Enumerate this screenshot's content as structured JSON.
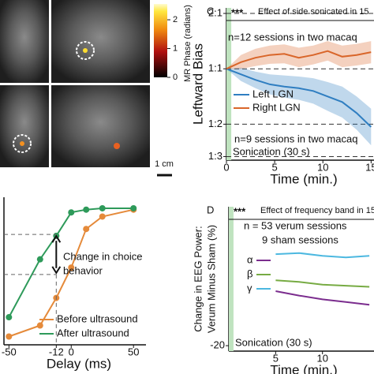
{
  "figure": {
    "colorbar": {
      "label": "MR Phase (radians)",
      "ticks": [
        0,
        1,
        2
      ],
      "lim": [
        0,
        2.55
      ]
    },
    "scale_bar": "1 cm"
  },
  "chart_data": [
    {
      "type": "line",
      "panel": "C",
      "significance": "***",
      "title": "Effect of side sonicated in 15",
      "xlabel": "Time (min.)",
      "ylabel": "Leftward Bias",
      "xlim": [
        0,
        15.3
      ],
      "xticks": [
        0,
        5,
        10,
        15
      ],
      "ylim": [
        -1.65,
        1.1
      ],
      "yticks": [
        {
          "value": 1,
          "label": "2:1"
        },
        {
          "value": 0,
          "label": "1:1"
        },
        {
          "value": -1,
          "label": "1:2"
        },
        {
          "value": -1.585,
          "label": "1:3"
        }
      ],
      "grid": "dashed",
      "shaded": [
        0,
        0.5
      ],
      "shaded_label": "Sonication (30 s)",
      "x": [
        0,
        1.5,
        3,
        4.5,
        6,
        7.5,
        9,
        10.5,
        12,
        13.5,
        15
      ],
      "series": [
        {
          "name": "Left LGN",
          "color": "#2f7ec1",
          "note": "n=9 sessions in two macaq",
          "values": [
            0,
            -0.1,
            -0.2,
            -0.28,
            -0.32,
            -0.35,
            -0.4,
            -0.5,
            -0.6,
            -0.8,
            -1.05
          ],
          "upper": [
            0,
            0.02,
            -0.05,
            -0.1,
            -0.12,
            -0.14,
            -0.17,
            -0.24,
            -0.32,
            -0.5,
            -0.72
          ],
          "lower": [
            0,
            -0.22,
            -0.35,
            -0.46,
            -0.52,
            -0.56,
            -0.63,
            -0.76,
            -0.88,
            -1.1,
            -1.38
          ]
        },
        {
          "name": "Right LGN",
          "color": "#d9662a",
          "note": "n=12 sessions in two macaq",
          "values": [
            0,
            0.12,
            0.2,
            0.25,
            0.27,
            0.2,
            0.25,
            0.32,
            0.22,
            0.25,
            0.3
          ],
          "upper": [
            0,
            0.25,
            0.36,
            0.42,
            0.44,
            0.38,
            0.42,
            0.5,
            0.42,
            0.45,
            0.5
          ],
          "lower": [
            0,
            0.0,
            0.05,
            0.09,
            0.1,
            0.03,
            0.08,
            0.15,
            0.03,
            0.06,
            0.1
          ]
        }
      ]
    },
    {
      "type": "psychometric",
      "xlabel": "Delay (ms)",
      "xlim": [
        -54,
        60
      ],
      "xticks": [
        -50,
        -12,
        0,
        50
      ],
      "ylim": [
        0,
        1.07
      ],
      "hlines": [
        0.8,
        0.51
      ],
      "vline": -12,
      "annotation": [
        "Change in choice",
        "behavior"
      ],
      "x": [
        -50,
        -25,
        -12,
        0,
        12,
        25,
        50
      ],
      "series": [
        {
          "name": "Before ultrasound",
          "color": "#e58a3a",
          "values": [
            0.06,
            0.14,
            0.34,
            0.56,
            0.84,
            0.93,
            0.98
          ]
        },
        {
          "name": "After ultrasound",
          "color": "#2e9a5a",
          "values": [
            0.2,
            0.62,
            0.79,
            0.96,
            0.98,
            0.99,
            0.99
          ]
        }
      ]
    },
    {
      "type": "line",
      "panel": "D",
      "significance": "***",
      "title": "Effect of frequency band in 15",
      "notes": [
        "n = 53 verum sessions",
        "9 sham sessions"
      ],
      "xlabel": "Time (min.)",
      "ylabel": [
        "Change in EEG Power:",
        "Verum Minus Sham (%)"
      ],
      "xlim": [
        0,
        15.5
      ],
      "xticks": [
        5,
        10
      ],
      "ylim": [
        -21,
        5.5
      ],
      "yticks": [
        -20
      ],
      "shaded": [
        0,
        0.5
      ],
      "shaded_label": "Sonication (30 s)",
      "x": [
        5,
        7.5,
        10,
        12.5,
        15
      ],
      "series": [
        {
          "name": "α",
          "color": "#7b2d8e",
          "values": [
            -10,
            -10.8,
            -11.5,
            -12,
            -12.5
          ]
        },
        {
          "name": "β",
          "color": "#77ab43",
          "values": [
            -8,
            -8.3,
            -8.8,
            -9,
            -9.2
          ]
        },
        {
          "name": "γ",
          "color": "#4cb8e0",
          "values": [
            -3.2,
            -3.0,
            -3.5,
            -3.8,
            -3.5
          ]
        }
      ]
    }
  ]
}
